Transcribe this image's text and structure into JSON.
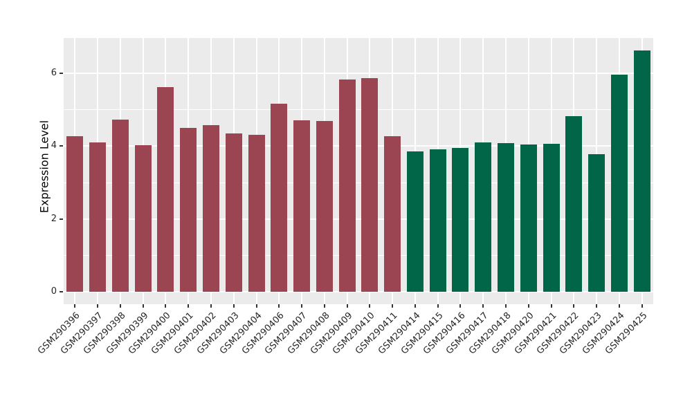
{
  "chart_data": {
    "type": "bar",
    "title": "",
    "xlabel": "",
    "ylabel": "Expression Level",
    "ylim": [
      0,
      6.97
    ],
    "yticks": [
      0,
      2,
      4,
      6
    ],
    "yticks_minor": [
      1,
      3,
      5
    ],
    "grid": "white major and minor horizontal lines plus vertical lines at bar centers, on gray panel",
    "legend_position": "none",
    "colors": {
      "panel_background": "#EBEBEB",
      "gridline": "#FFFFFF",
      "axis_text": "#262626",
      "tick_mark": "#333333",
      "maroon_group": "#9A4551",
      "green_group": "#016647"
    },
    "series": [
      {
        "color": "#9A4551",
        "categories": [
          "GSM290396",
          "GSM290397",
          "GSM290398",
          "GSM290399",
          "GSM290400",
          "GSM290401",
          "GSM290402",
          "GSM290403",
          "GSM290404",
          "GSM290406",
          "GSM290407",
          "GSM290408",
          "GSM290409",
          "GSM290410",
          "GSM290411"
        ],
        "values": [
          4.28,
          4.1,
          4.73,
          4.02,
          5.62,
          4.51,
          4.58,
          4.35,
          4.31,
          5.17,
          4.71,
          4.7,
          5.83,
          5.87,
          4.27
        ]
      },
      {
        "color": "#016647",
        "categories": [
          "GSM290414",
          "GSM290415",
          "GSM290416",
          "GSM290417",
          "GSM290418",
          "GSM290420",
          "GSM290421",
          "GSM290422",
          "GSM290423",
          "GSM290424",
          "GSM290425"
        ],
        "values": [
          3.85,
          3.92,
          3.95,
          4.11,
          4.09,
          4.05,
          4.06,
          4.83,
          3.77,
          5.96,
          6.62
        ]
      }
    ]
  }
}
